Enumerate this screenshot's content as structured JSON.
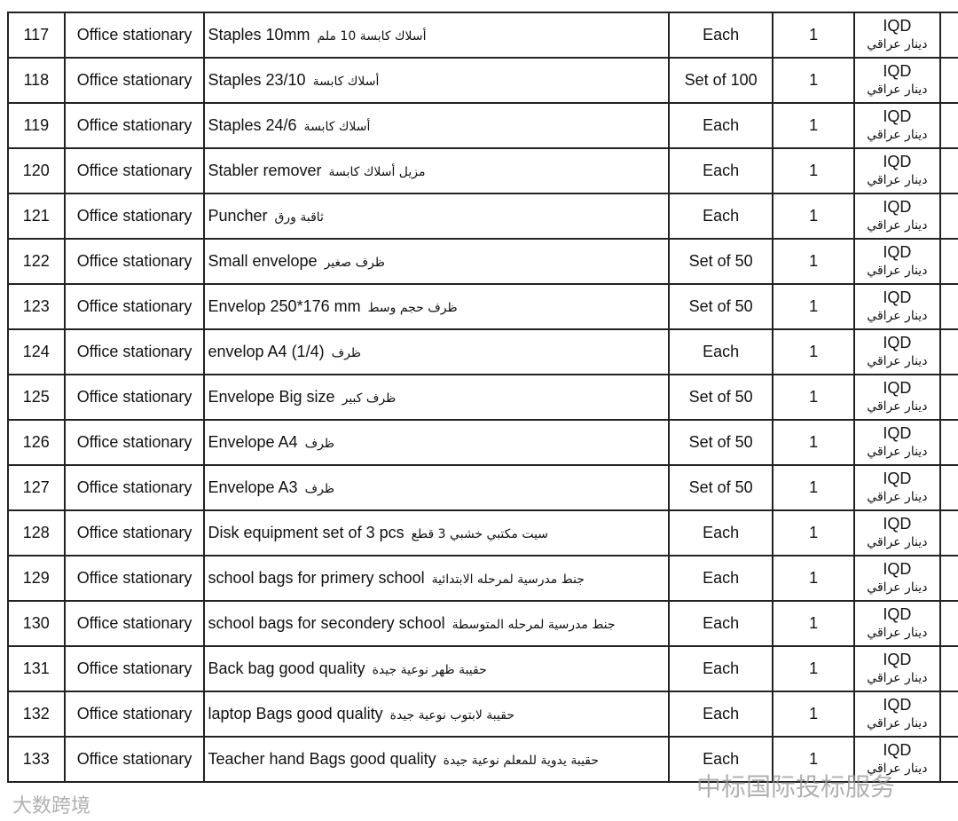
{
  "rows": [
    {
      "no": "117",
      "category": "Office stationary",
      "desc_en": "Staples 10mm",
      "desc_ar": "أسلاك كابسة 10 ملم",
      "unit": "Each",
      "qty": "1",
      "currency": "IQD",
      "currency_ar": "دينار عراقي"
    },
    {
      "no": "118",
      "category": "Office stationary",
      "desc_en": "Staples 23/10",
      "desc_ar": "أسلاك كابسة",
      "unit": "Set of 100",
      "qty": "1",
      "currency": "IQD",
      "currency_ar": "دينار عراقي"
    },
    {
      "no": "119",
      "category": "Office stationary",
      "desc_en": "Staples 24/6",
      "desc_ar": "أسلاك كابسة",
      "unit": "Each",
      "qty": "1",
      "currency": "IQD",
      "currency_ar": "دينار عراقي"
    },
    {
      "no": "120",
      "category": "Office stationary",
      "desc_en": "Stabler remover",
      "desc_ar": "مزيل أسلاك كابسة",
      "unit": "Each",
      "qty": "1",
      "currency": "IQD",
      "currency_ar": "دينار عراقي"
    },
    {
      "no": "121",
      "category": "Office stationary",
      "desc_en": "Puncher",
      "desc_ar": "ثاقبة ورق",
      "unit": "Each",
      "qty": "1",
      "currency": "IQD",
      "currency_ar": "دينار عراقي"
    },
    {
      "no": "122",
      "category": "Office stationary",
      "desc_en": "Small envelope",
      "desc_ar": "ظرف صغير",
      "unit": "Set of 50",
      "qty": "1",
      "currency": "IQD",
      "currency_ar": "دينار عراقي"
    },
    {
      "no": "123",
      "category": "Office stationary",
      "desc_en": "Envelop 250*176 mm",
      "desc_ar": "ظرف حجم وسط",
      "unit": "Set of 50",
      "qty": "1",
      "currency": "IQD",
      "currency_ar": "دينار عراقي"
    },
    {
      "no": "124",
      "category": "Office stationary",
      "desc_en": "envelop A4 (1/4)",
      "desc_ar": "ظرف",
      "unit": "Each",
      "qty": "1",
      "currency": "IQD",
      "currency_ar": "دينار عراقي"
    },
    {
      "no": "125",
      "category": "Office stationary",
      "desc_en": "Envelope Big size",
      "desc_ar": "ظرف كبير",
      "unit": "Set of 50",
      "qty": "1",
      "currency": "IQD",
      "currency_ar": "دينار عراقي"
    },
    {
      "no": "126",
      "category": "Office stationary",
      "desc_en": "Envelope A4",
      "desc_ar": "ظرف",
      "unit": "Set of 50",
      "qty": "1",
      "currency": "IQD",
      "currency_ar": "دينار عراقي"
    },
    {
      "no": "127",
      "category": "Office stationary",
      "desc_en": "Envelope  A3",
      "desc_ar": "ظرف",
      "unit": "Set of 50",
      "qty": "1",
      "currency": "IQD",
      "currency_ar": "دينار عراقي"
    },
    {
      "no": "128",
      "category": "Office stationary",
      "desc_en": "Disk equipment set of 3 pcs",
      "desc_ar": "سيت مكتبي خشبي 3 قطع",
      "unit": "Each",
      "qty": "1",
      "currency": "IQD",
      "currency_ar": "دينار عراقي"
    },
    {
      "no": "129",
      "category": "Office stationary",
      "desc_en": "school bags for primery school",
      "desc_ar": "جنط مدرسية لمرحله الابتدائية",
      "unit": "Each",
      "qty": "1",
      "currency": "IQD",
      "currency_ar": "دينار عراقي"
    },
    {
      "no": "130",
      "category": "Office stationary",
      "desc_en": "school bags for secondery school",
      "desc_ar": "جنط مدرسية لمرحله المتوسطة",
      "unit": "Each",
      "qty": "1",
      "currency": "IQD",
      "currency_ar": "دينار عراقي"
    },
    {
      "no": "131",
      "category": "Office stationary",
      "desc_en": "Back bag good quality",
      "desc_ar": "حقيبة ظهر نوعية جيدة",
      "unit": "Each",
      "qty": "1",
      "currency": "IQD",
      "currency_ar": "دينار عراقي"
    },
    {
      "no": "132",
      "category": "Office stationary",
      "desc_en": "laptop Bags good quality",
      "desc_ar": "حقيبة لابتوب نوعية جيدة",
      "unit": "Each",
      "qty": "1",
      "currency": "IQD",
      "currency_ar": "دينار عراقي"
    },
    {
      "no": "133",
      "category": "Office stationary",
      "desc_en": "Teacher hand Bags good quality",
      "desc_ar": "حقيبة يدوية للمعلم  نوعية جيدة",
      "unit": "Each",
      "qty": "1",
      "currency": "IQD",
      "currency_ar": "دينار عراقي"
    }
  ],
  "watermarks": {
    "right": "中标国际投标服务",
    "left": "大数跨境"
  }
}
